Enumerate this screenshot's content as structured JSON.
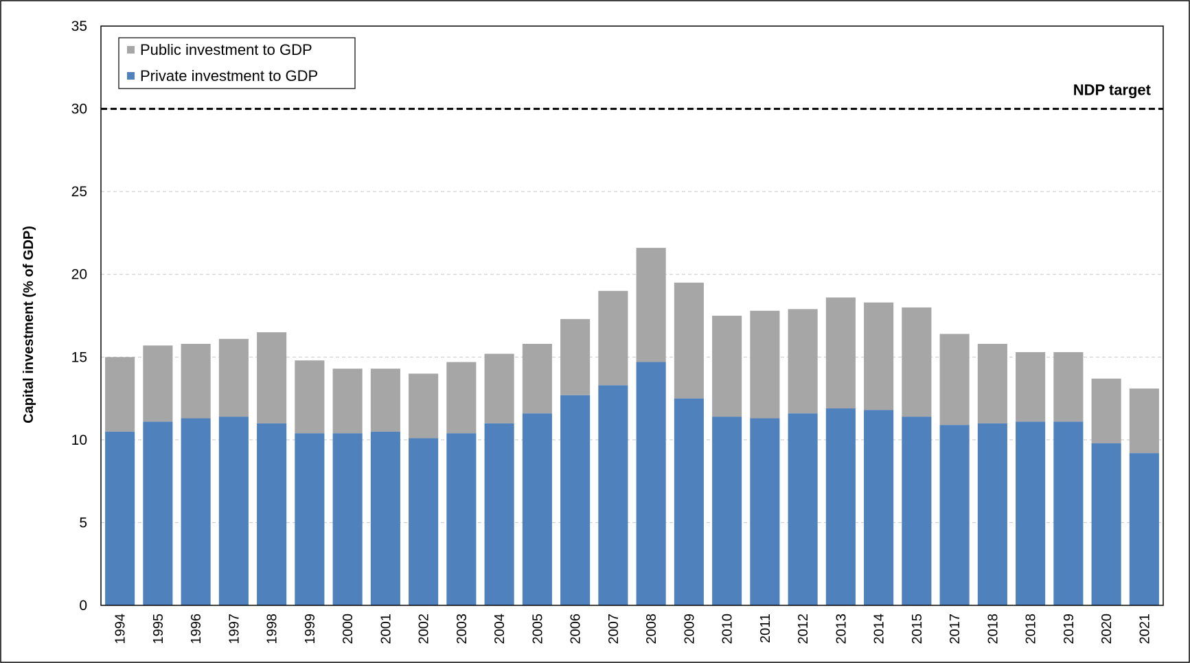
{
  "chart_data": {
    "type": "stacked_bar",
    "y_label": "Capital investment (% of GDP)",
    "categories": [
      "1994",
      "1995",
      "1996",
      "1997",
      "1998",
      "1999",
      "2000",
      "2001",
      "2002",
      "2003",
      "2004",
      "2005",
      "2006",
      "2007",
      "2008",
      "2009",
      "2010",
      "2011",
      "2012",
      "2013",
      "2014",
      "2015",
      "2017",
      "2018",
      "2018",
      "2019",
      "2020",
      "2021"
    ],
    "series": [
      {
        "name": "Private investment to GDP",
        "color": "#4f81bd",
        "values": [
          10.5,
          11.1,
          11.3,
          11.4,
          11.0,
          10.4,
          10.4,
          10.5,
          10.1,
          10.4,
          11.0,
          11.6,
          12.7,
          13.3,
          14.7,
          12.5,
          11.4,
          11.3,
          11.6,
          11.9,
          11.8,
          11.4,
          10.9,
          11.0,
          11.1,
          11.1,
          9.8,
          9.2
        ]
      },
      {
        "name": "Public investment to GDP",
        "color": "#a6a6a6",
        "values": [
          4.5,
          4.6,
          4.5,
          4.7,
          5.5,
          4.4,
          3.9,
          3.8,
          3.9,
          4.3,
          4.2,
          4.2,
          4.6,
          5.7,
          6.9,
          7.0,
          6.1,
          6.5,
          6.3,
          6.7,
          6.5,
          6.6,
          5.5,
          4.8,
          4.2,
          4.2,
          3.9,
          3.9
        ]
      }
    ],
    "target": {
      "value": 30,
      "label": "NDP target"
    },
    "ylim": [
      0,
      35
    ],
    "yticks": [
      0,
      5,
      10,
      15,
      20,
      25,
      30,
      35
    ],
    "grid": true
  }
}
